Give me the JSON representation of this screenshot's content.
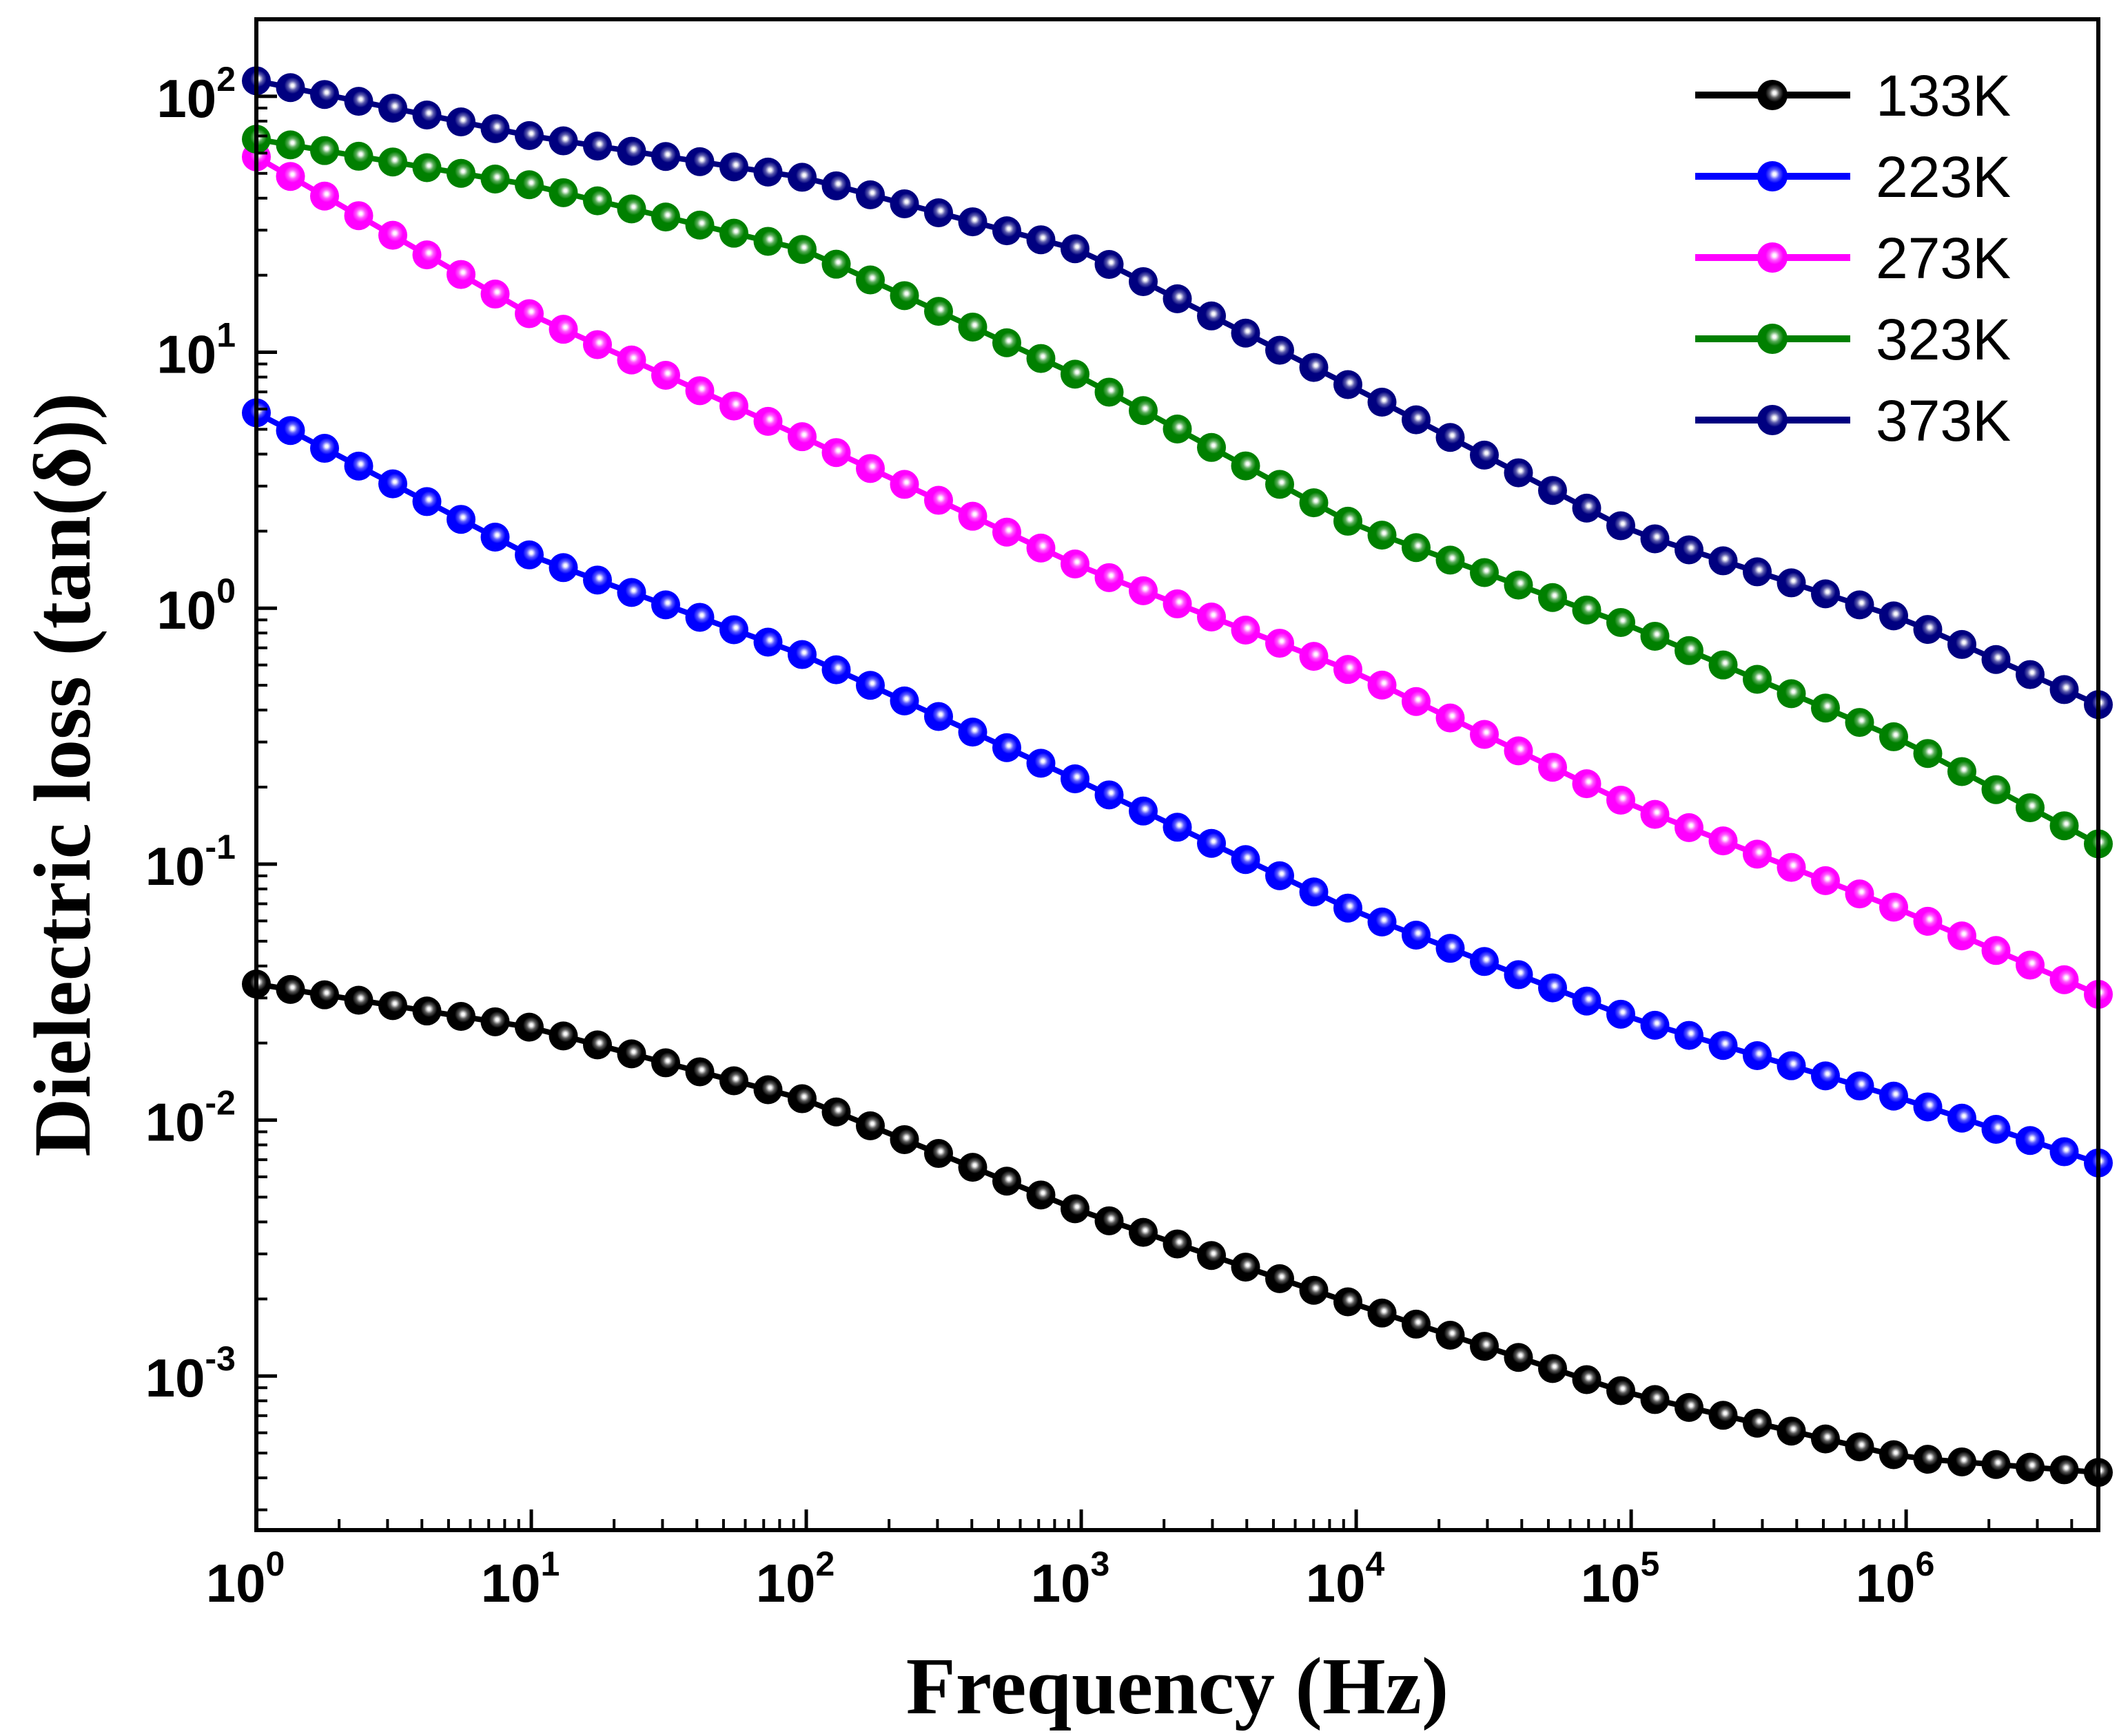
{
  "chart_data": {
    "type": "line",
    "title": "",
    "xlabel": "Frequency (Hz)",
    "ylabel": "Dielectric loss (tan(δ))",
    "xscale": "log",
    "yscale": "log",
    "xlim": [
      1,
      5000000
    ],
    "ylim": [
      0.00025,
      200
    ],
    "x_ticks": [
      {
        "value": 1,
        "base": "10",
        "exp": "0"
      },
      {
        "value": 10,
        "base": "10",
        "exp": "1"
      },
      {
        "value": 100,
        "base": "10",
        "exp": "2"
      },
      {
        "value": 1000,
        "base": "10",
        "exp": "3"
      },
      {
        "value": 10000,
        "base": "10",
        "exp": "4"
      },
      {
        "value": 100000,
        "base": "10",
        "exp": "5"
      },
      {
        "value": 1000000,
        "base": "10",
        "exp": "6"
      }
    ],
    "y_ticks": [
      {
        "value": 0.001,
        "base": "10",
        "exp": "-3"
      },
      {
        "value": 0.01,
        "base": "10",
        "exp": "-2"
      },
      {
        "value": 0.1,
        "base": "10",
        "exp": "-1"
      },
      {
        "value": 1,
        "base": "10",
        "exp": "0"
      },
      {
        "value": 10,
        "base": "10",
        "exp": "1"
      },
      {
        "value": 100,
        "base": "10",
        "exp": "2"
      }
    ],
    "grid": false,
    "legend_position": "top-right",
    "points_per_decade": 8,
    "series": [
      {
        "name": "133K",
        "color": "#000000",
        "anchors": [
          [
            1,
            0.034
          ],
          [
            10,
            0.023
          ],
          [
            100,
            0.012
          ],
          [
            1000,
            0.0044
          ],
          [
            10000,
            0.0019
          ],
          [
            100000,
            0.00085
          ],
          [
            1000000,
            0.00048
          ],
          [
            5000000,
            0.00042
          ]
        ]
      },
      {
        "name": "223K",
        "color": "#0000ff",
        "anchors": [
          [
            1,
            5.8
          ],
          [
            10,
            1.6
          ],
          [
            100,
            0.65
          ],
          [
            1000,
            0.21
          ],
          [
            10000,
            0.065
          ],
          [
            100000,
            0.025
          ],
          [
            1000000,
            0.012
          ],
          [
            5000000,
            0.0068
          ]
        ]
      },
      {
        "name": "273K",
        "color": "#ff00ff",
        "anchors": [
          [
            1,
            58
          ],
          [
            10,
            14
          ],
          [
            100,
            4.6
          ],
          [
            1000,
            1.45
          ],
          [
            10000,
            0.56
          ],
          [
            100000,
            0.17
          ],
          [
            1000000,
            0.065
          ],
          [
            5000000,
            0.031
          ]
        ]
      },
      {
        "name": "323K",
        "color": "#008000",
        "anchors": [
          [
            1,
            68
          ],
          [
            10,
            45
          ],
          [
            100,
            25
          ],
          [
            1000,
            8
          ],
          [
            10000,
            2.1
          ],
          [
            100000,
            0.85
          ],
          [
            1000000,
            0.3
          ],
          [
            5000000,
            0.12
          ]
        ]
      },
      {
        "name": "373K",
        "color": "#000080",
        "anchors": [
          [
            1,
            115
          ],
          [
            10,
            70
          ],
          [
            100,
            48
          ],
          [
            1000,
            25
          ],
          [
            10000,
            7.2
          ],
          [
            100000,
            2
          ],
          [
            1000000,
            0.9
          ],
          [
            5000000,
            0.42
          ]
        ]
      }
    ]
  }
}
